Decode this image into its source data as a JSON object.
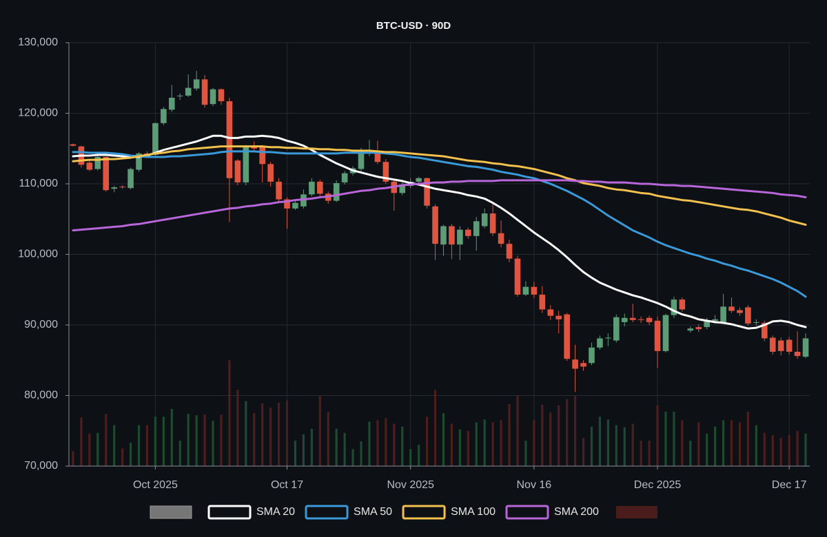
{
  "chart_data": {
    "type": "candlestick",
    "title": "BTC-USD · 90D",
    "x": [
      "2025-09-21",
      "2025-09-22",
      "2025-09-23",
      "2025-09-24",
      "2025-09-25",
      "2025-09-26",
      "2025-09-27",
      "2025-09-28",
      "2025-09-29",
      "2025-09-30",
      "2025-10-01",
      "2025-10-02",
      "2025-10-03",
      "2025-10-04",
      "2025-10-05",
      "2025-10-06",
      "2025-10-07",
      "2025-10-08",
      "2025-10-09",
      "2025-10-10",
      "2025-10-11",
      "2025-10-12",
      "2025-10-13",
      "2025-10-14",
      "2025-10-15",
      "2025-10-16",
      "2025-10-17",
      "2025-10-18",
      "2025-10-19",
      "2025-10-20",
      "2025-10-21",
      "2025-10-22",
      "2025-10-23",
      "2025-10-24",
      "2025-10-25",
      "2025-10-26",
      "2025-10-27",
      "2025-10-28",
      "2025-10-29",
      "2025-10-30",
      "2025-10-31",
      "2025-11-01",
      "2025-11-02",
      "2025-11-03",
      "2025-11-04",
      "2025-11-05",
      "2025-11-06",
      "2025-11-07",
      "2025-11-08",
      "2025-11-09",
      "2025-11-10",
      "2025-11-11",
      "2025-11-12",
      "2025-11-13",
      "2025-11-14",
      "2025-11-15",
      "2025-11-16",
      "2025-11-17",
      "2025-11-18",
      "2025-11-19",
      "2025-11-20",
      "2025-11-21",
      "2025-11-22",
      "2025-11-23",
      "2025-11-24",
      "2025-11-25",
      "2025-11-26",
      "2025-11-27",
      "2025-11-28",
      "2025-11-29",
      "2025-11-30",
      "2025-12-01",
      "2025-12-02",
      "2025-12-03",
      "2025-12-04",
      "2025-12-05",
      "2025-12-06",
      "2025-12-07",
      "2025-12-08",
      "2025-12-09",
      "2025-12-10",
      "2025-12-11",
      "2025-12-12",
      "2025-12-13",
      "2025-12-14",
      "2025-12-15",
      "2025-12-16",
      "2025-12-17",
      "2025-12-18",
      "2025-12-19"
    ],
    "open": [
      115600,
      115300,
      113000,
      112100,
      113800,
      109300,
      109600,
      109400,
      112000,
      114300,
      114100,
      118600,
      120500,
      122400,
      122500,
      123500,
      124800,
      121300,
      123400,
      121700,
      113300,
      110200,
      115300,
      115200,
      112800,
      110300,
      107800,
      106500,
      106800,
      108500,
      110300,
      108600,
      107600,
      110200,
      111500,
      112100,
      114600,
      114700,
      113100,
      110300,
      108700,
      109700,
      110300,
      110800,
      106800,
      101400,
      104000,
      101400,
      103500,
      102600,
      104000,
      105800,
      103000,
      101500,
      99400,
      94300,
      95400,
      94300,
      92200,
      91300,
      91500,
      85100,
      84600,
      84600,
      86800,
      88100,
      87800,
      90400,
      91000,
      90800,
      91000,
      90600,
      86300,
      91400,
      93600,
      89200,
      89700,
      89700,
      90600,
      90400,
      92600,
      92100,
      92500,
      90300,
      90300,
      88200,
      87800,
      87900,
      86200,
      85500
    ],
    "high": [
      115700,
      115400,
      113300,
      114000,
      113900,
      109700,
      109800,
      112300,
      114500,
      114600,
      118700,
      120900,
      124000,
      122800,
      125500,
      126000,
      125400,
      123600,
      123500,
      122200,
      113500,
      115500,
      116000,
      115500,
      113100,
      110800,
      108100,
      107600,
      109200,
      110800,
      110600,
      108900,
      110500,
      111800,
      112500,
      115100,
      116200,
      116100,
      113500,
      110600,
      110200,
      110800,
      111000,
      110900,
      107100,
      104200,
      104300,
      104000,
      103800,
      105300,
      106500,
      107200,
      104800,
      102100,
      99800,
      96200,
      96100,
      95500,
      92800,
      92000,
      91700,
      87200,
      85000,
      87500,
      88500,
      88800,
      91500,
      91600,
      93000,
      91200,
      91300,
      91200,
      91600,
      94000,
      93900,
      89800,
      90100,
      91000,
      91400,
      94400,
      93900,
      92500,
      92800,
      90800,
      90600,
      88500,
      88200,
      88300,
      89100,
      88800
    ],
    "low": [
      115300,
      112300,
      111800,
      111900,
      108900,
      108800,
      109300,
      109200,
      111700,
      113800,
      113900,
      118300,
      120200,
      121900,
      122300,
      123200,
      120800,
      121000,
      121200,
      104600,
      109800,
      109800,
      114500,
      110200,
      109600,
      107300,
      103600,
      106300,
      106500,
      108200,
      108300,
      107200,
      107400,
      109900,
      111200,
      111800,
      113900,
      112800,
      110000,
      106200,
      108400,
      109400,
      110000,
      106500,
      99200,
      99800,
      99300,
      99200,
      102200,
      100500,
      103700,
      102600,
      101000,
      98900,
      94000,
      94100,
      93800,
      91700,
      90700,
      88800,
      84900,
      80500,
      83500,
      84300,
      86500,
      87000,
      87500,
      89800,
      90400,
      90300,
      90000,
      83900,
      86100,
      91000,
      91900,
      88900,
      89000,
      89400,
      90200,
      90100,
      91700,
      91300,
      89900,
      89900,
      87700,
      85800,
      85700,
      85800,
      85200,
      85300
    ],
    "close": [
      115400,
      112700,
      112000,
      113800,
      109100,
      109500,
      109500,
      112100,
      114300,
      114000,
      118600,
      120600,
      122200,
      122500,
      123600,
      124800,
      121200,
      123400,
      121700,
      110800,
      110200,
      115200,
      115000,
      112800,
      110300,
      107800,
      106500,
      107300,
      108500,
      110300,
      108600,
      107600,
      110100,
      111500,
      112200,
      114600,
      114800,
      113100,
      110300,
      108700,
      109900,
      110300,
      110800,
      106900,
      101500,
      104000,
      101400,
      103500,
      102600,
      104700,
      105800,
      103000,
      101500,
      99400,
      94300,
      95400,
      94300,
      92200,
      91300,
      90800,
      85200,
      83800,
      84100,
      86800,
      88100,
      88200,
      91100,
      91000,
      90700,
      90700,
      90400,
      86300,
      91400,
      93600,
      92200,
      89500,
      89400,
      90600,
      90800,
      92600,
      92000,
      91700,
      90200,
      90400,
      88100,
      86200,
      86300,
      86200,
      85600,
      88100
    ],
    "up_color": "#5c9c76",
    "down_color": "#e0553f",
    "legend_color": "#767676",
    "volume": {
      "values": [
        72100,
        76900,
        74600,
        74700,
        77400,
        75800,
        72500,
        73300,
        75800,
        75800,
        77000,
        77000,
        78100,
        73600,
        77400,
        77200,
        77300,
        76400,
        77300,
        85000,
        80800,
        79200,
        77500,
        78900,
        78300,
        79000,
        79300,
        73600,
        74500,
        75300,
        80000,
        77700,
        75300,
        74700,
        72400,
        73500,
        76300,
        76500,
        76800,
        76000,
        75600,
        72400,
        73000,
        77000,
        80800,
        77500,
        76000,
        75200,
        75000,
        76200,
        76600,
        76200,
        76500,
        78800,
        80000,
        73600,
        76500,
        78700,
        77600,
        78600,
        79500,
        80000,
        74000,
        75600,
        77000,
        76600,
        75800,
        75500,
        76000,
        73600,
        73600,
        78600,
        77700,
        77700,
        76500,
        73600,
        76200,
        74600,
        75600,
        76500,
        76500,
        76200,
        77700,
        75800,
        74700,
        74400,
        74000,
        74400,
        75000,
        74600
      ],
      "up_color": "#1d4a30",
      "down_color": "#4d1e1e",
      "legend_color": "#4a1c1c"
    },
    "series": [
      {
        "name": "SMA 20",
        "color": "#ffffff",
        "values": [
          113900,
          114000,
          114000,
          114100,
          114100,
          114000,
          113900,
          113800,
          113800,
          114000,
          114400,
          114800,
          115100,
          115400,
          115700,
          116000,
          116400,
          116800,
          116800,
          116500,
          116500,
          116700,
          116700,
          116800,
          116700,
          116500,
          116100,
          115800,
          115400,
          114800,
          114100,
          113500,
          112900,
          112400,
          111900,
          111600,
          111300,
          111000,
          110800,
          110600,
          110400,
          110100,
          109900,
          109600,
          109300,
          109100,
          108900,
          108700,
          108400,
          108200,
          107900,
          107300,
          106600,
          105800,
          104900,
          104000,
          103100,
          102300,
          101500,
          100600,
          99600,
          98500,
          97500,
          96700,
          96000,
          95500,
          95000,
          94600,
          94200,
          93900,
          93500,
          93100,
          92600,
          92000,
          91500,
          91200,
          90800,
          90600,
          90400,
          90300,
          90100,
          89800,
          89500,
          89600,
          90000,
          90500,
          90600,
          90400,
          90000,
          89700
        ]
      },
      {
        "name": "SMA 50",
        "color": "#3a9ad9",
        "values": [
          114500,
          114500,
          114400,
          114400,
          114400,
          114300,
          114200,
          114000,
          113900,
          113800,
          113800,
          113800,
          113900,
          113900,
          114000,
          114100,
          114200,
          114300,
          114500,
          114600,
          114600,
          114600,
          114600,
          114500,
          114500,
          114400,
          114300,
          114300,
          114300,
          114300,
          114300,
          114300,
          114300,
          114400,
          114400,
          114400,
          114400,
          114400,
          114300,
          114200,
          114000,
          113800,
          113700,
          113500,
          113300,
          113100,
          112900,
          112700,
          112500,
          112400,
          112200,
          112000,
          111700,
          111500,
          111300,
          111000,
          110800,
          110400,
          110000,
          109500,
          109000,
          108400,
          107800,
          107100,
          106300,
          105500,
          104800,
          104100,
          103400,
          102900,
          102400,
          101800,
          101300,
          100900,
          100500,
          100100,
          99800,
          99400,
          99100,
          98700,
          98400,
          98000,
          97700,
          97300,
          96900,
          96500,
          96000,
          95400,
          94800,
          94000
        ]
      },
      {
        "name": "SMA 100",
        "color": "#f2c14e",
        "values": [
          113200,
          113300,
          113400,
          113400,
          113500,
          113500,
          113600,
          113700,
          113900,
          114100,
          114300,
          114400,
          114600,
          114700,
          114900,
          115000,
          115100,
          115200,
          115300,
          115300,
          115300,
          115300,
          115300,
          115300,
          115200,
          115200,
          115100,
          115100,
          115000,
          115000,
          114900,
          114900,
          114800,
          114800,
          114700,
          114700,
          114700,
          114600,
          114500,
          114500,
          114400,
          114300,
          114200,
          114100,
          114000,
          113900,
          113700,
          113500,
          113300,
          113200,
          113100,
          112900,
          112800,
          112600,
          112500,
          112300,
          112100,
          111800,
          111500,
          111200,
          110800,
          110500,
          110100,
          109900,
          109700,
          109400,
          109200,
          109100,
          108900,
          108700,
          108600,
          108300,
          108100,
          107900,
          107700,
          107600,
          107400,
          107200,
          107000,
          106800,
          106600,
          106400,
          106300,
          106100,
          105800,
          105500,
          105200,
          104800,
          104500,
          104200
        ]
      },
      {
        "name": "SMA 200",
        "color": "#b866d9",
        "values": [
          103400,
          103500,
          103600,
          103700,
          103800,
          103900,
          104000,
          104200,
          104300,
          104500,
          104700,
          104900,
          105100,
          105300,
          105500,
          105700,
          105900,
          106100,
          106300,
          106500,
          106600,
          106800,
          106900,
          107100,
          107200,
          107400,
          107500,
          107700,
          107800,
          107900,
          108100,
          108200,
          108400,
          108600,
          108800,
          109000,
          109100,
          109300,
          109400,
          109600,
          109800,
          109900,
          110000,
          110100,
          110200,
          110200,
          110300,
          110300,
          110400,
          110400,
          110400,
          110400,
          110500,
          110500,
          110500,
          110500,
          110500,
          110500,
          110500,
          110500,
          110500,
          110400,
          110400,
          110300,
          110300,
          110200,
          110200,
          110200,
          110100,
          110000,
          110000,
          109900,
          109800,
          109800,
          109700,
          109700,
          109600,
          109500,
          109400,
          109300,
          109200,
          109100,
          109000,
          108900,
          108800,
          108700,
          108500,
          108400,
          108300,
          108100
        ]
      }
    ],
    "xlim": [
      "2025-09-20T12:00:00Z",
      "2025-12-19T12:00:00Z"
    ],
    "xticks": [
      {
        "value": "2025-10-01",
        "label": "Oct 2025"
      },
      {
        "value": "2025-10-17",
        "label": "Oct 17"
      },
      {
        "value": "2025-11-01",
        "label": "Nov 2025"
      },
      {
        "value": "2025-11-16",
        "label": "Nov 16"
      },
      {
        "value": "2025-12-01",
        "label": "Dec 2025"
      },
      {
        "value": "2025-12-17",
        "label": "Dec 17"
      }
    ],
    "ylim": [
      70000,
      130000
    ],
    "yticks": [
      {
        "value": 70000,
        "label": "70,000"
      },
      {
        "value": 80000,
        "label": "80,000"
      },
      {
        "value": 90000,
        "label": "90,000"
      },
      {
        "value": 100000,
        "label": "100,000"
      },
      {
        "value": 110000,
        "label": "110,000"
      },
      {
        "value": 120000,
        "label": "120,000"
      },
      {
        "value": 130000,
        "label": "130,000"
      }
    ],
    "grid": true,
    "legend": "bottom"
  }
}
